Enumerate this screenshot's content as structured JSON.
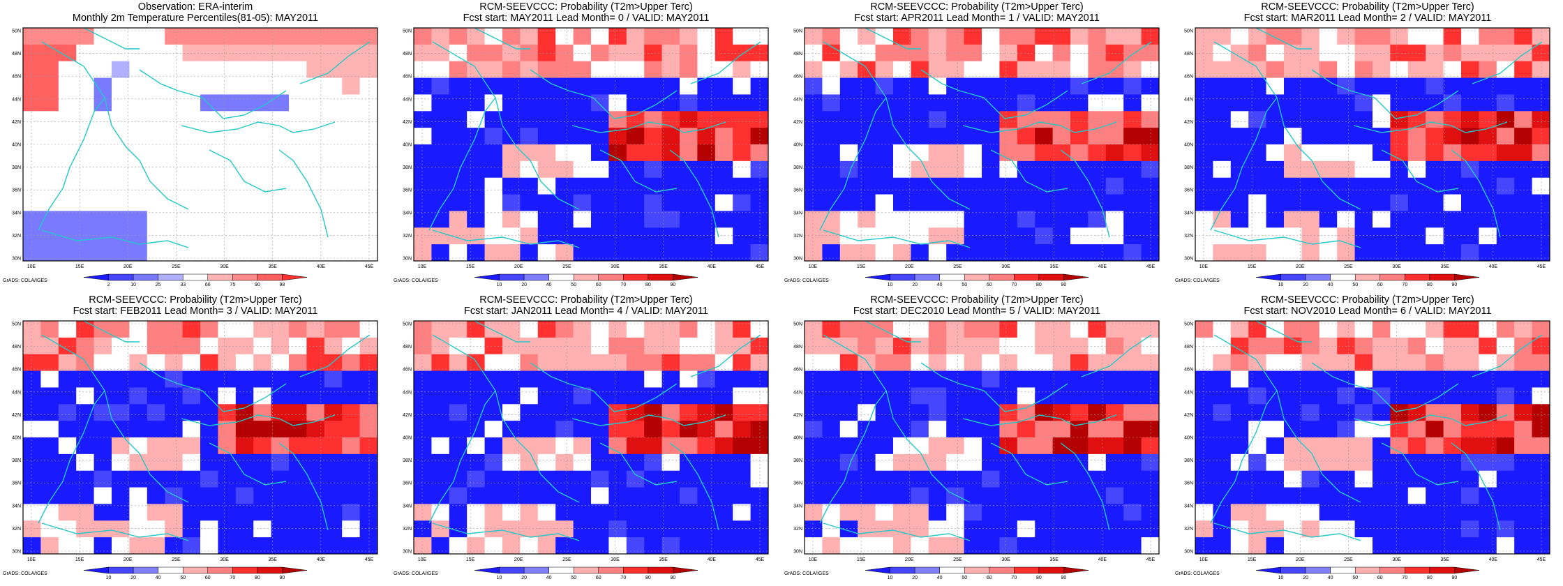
{
  "figure": {
    "credit": "GrADS: COLA/IGES",
    "lon_ticks": [
      "10E",
      "15E",
      "20E",
      "25E",
      "30E",
      "35E",
      "40E",
      "45E"
    ],
    "lat_ticks": [
      "30N",
      "32N",
      "34N",
      "36N",
      "38N",
      "40N",
      "42N",
      "44N",
      "46N",
      "48N",
      "50N"
    ],
    "obs_colorbar": [
      "2",
      "10",
      "25",
      "33",
      "66",
      "75",
      "90",
      "98"
    ],
    "prob_colorbar": [
      "10",
      "20",
      "40",
      "50",
      "60",
      "70",
      "80",
      "90"
    ],
    "colors": {
      "coast": "#22c8c8",
      "blue": "#1a1aff",
      "red": "#ff1a1a",
      "darkred": "#b40000",
      "white": "#ffffff"
    }
  },
  "panels": [
    {
      "title1": "Observation: ERA-interim",
      "title2": "Monthly 2m Temperature Percentiles(81-05): MAY2011",
      "colorbar": "obs",
      "grid": [
        "8888....888888888888",
        "666......77777777777",
        "66...b..........7777",
        "66..c.............7.",
        "66..c.....aaaaa....."
      ]
    },
    {
      "title1": "RCM-SEEVCCC: Probability (T2m>Upper Terc)",
      "title2": "Fcst start: MAY2011  Lead Month= 0 / VALID: MAY2011",
      "colorbar": "prob"
    },
    {
      "title1": "RCM-SEEVCCC: Probability (T2m>Upper Terc)",
      "title2": "Fcst start: APR2011  Lead Month= 1 / VALID: MAY2011",
      "colorbar": "prob"
    },
    {
      "title1": "RCM-SEEVCCC: Probability (T2m>Upper Terc)",
      "title2": "Fcst start: MAR2011  Lead Month= 2 / VALID: MAY2011",
      "colorbar": "prob"
    },
    {
      "title1": "RCM-SEEVCCC: Probability (T2m>Upper Terc)",
      "title2": "Fcst start: FEB2011  Lead Month= 3 / VALID: MAY2011",
      "colorbar": "prob"
    },
    {
      "title1": "RCM-SEEVCCC: Probability (T2m>Upper Terc)",
      "title2": "Fcst start: JAN2011  Lead Month= 4 / VALID: MAY2011",
      "colorbar": "prob"
    },
    {
      "title1": "RCM-SEEVCCC: Probability (T2m>Upper Terc)",
      "title2": "Fcst start: DEC2010  Lead Month= 5 / VALID: MAY2011",
      "colorbar": "prob"
    },
    {
      "title1": "RCM-SEEVCCC: Probability (T2m>Upper Terc)",
      "title2": "Fcst start: NOV2010  Lead Month= 6 / VALID: MAY2011",
      "colorbar": "prob"
    }
  ]
}
